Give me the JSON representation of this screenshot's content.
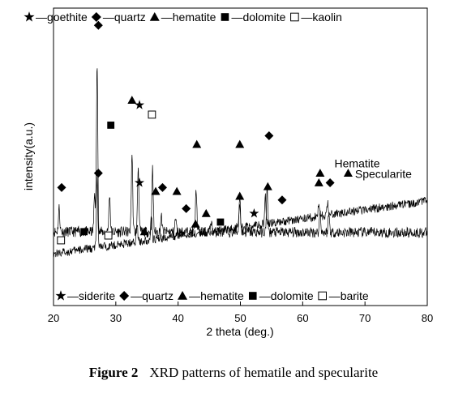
{
  "chart_data": {
    "type": "line",
    "xlabel": "2 theta (deg.)",
    "ylabel": "intensity(a.u.)",
    "xlim": [
      20,
      80
    ],
    "xticks": [
      20,
      30,
      40,
      50,
      60,
      70,
      80
    ],
    "y_ticks_shown": false,
    "grid": false,
    "top_legend": [
      {
        "symbol": "star",
        "text": "—goethite"
      },
      {
        "symbol": "diamond",
        "text": "—quartz"
      },
      {
        "symbol": "triangle",
        "text": "—hematite"
      },
      {
        "symbol": "square",
        "text": "—dolomite"
      },
      {
        "symbol": "open-square",
        "text": "—kaolin"
      }
    ],
    "bottom_legend": [
      {
        "symbol": "star",
        "text": "—siderite"
      },
      {
        "symbol": "diamond",
        "text": "—quartz"
      },
      {
        "symbol": "triangle",
        "text": "—hematite"
      },
      {
        "symbol": "square",
        "text": "—dolomite"
      },
      {
        "symbol": "open-square",
        "text": "—barite"
      }
    ],
    "series": [
      {
        "name": "Hematite",
        "baseline_start": 0.32,
        "baseline_end": 0.31,
        "noise": 0.055,
        "peaks": [
          [
            20.9,
            0.25
          ],
          [
            26.6,
            0.4
          ],
          [
            27.0,
            1.75
          ],
          [
            29.0,
            0.4
          ],
          [
            32.6,
            0.82
          ],
          [
            33.6,
            0.68
          ],
          [
            35.9,
            0.65
          ],
          [
            37.3,
            0.16
          ],
          [
            39.6,
            0.14
          ],
          [
            42.9,
            0.45
          ],
          [
            45.3,
            0.12
          ],
          [
            49.9,
            0.4
          ],
          [
            54.3,
            0.45
          ],
          [
            62.8,
            0.22
          ],
          [
            64.2,
            0.2
          ]
        ],
        "markers": [
          {
            "symbol": "diamond",
            "x": 21.3,
            "y": 0.78
          },
          {
            "symbol": "diamond",
            "x": 27.2,
            "y": 2.47
          },
          {
            "symbol": "square",
            "x": 29.2,
            "y": 1.43
          },
          {
            "symbol": "triangle",
            "x": 32.6,
            "y": 1.69
          },
          {
            "symbol": "star",
            "x": 33.8,
            "y": 1.64
          },
          {
            "symbol": "open-square",
            "x": 35.8,
            "y": 1.54
          },
          {
            "symbol": "diamond",
            "x": 37.5,
            "y": 0.78
          },
          {
            "symbol": "triangle",
            "x": 39.8,
            "y": 0.74
          },
          {
            "symbol": "triangle",
            "x": 43.0,
            "y": 1.23
          },
          {
            "symbol": "triangle",
            "x": 49.9,
            "y": 1.23
          },
          {
            "symbol": "diamond",
            "x": 54.6,
            "y": 1.32
          },
          {
            "symbol": "triangle",
            "x": 62.8,
            "y": 0.93
          },
          {
            "symbol": "triangle",
            "x": 67.3,
            "y": 0.93
          }
        ],
        "label": "Hematite",
        "label_x": 65.1,
        "label_y": 0.99
      },
      {
        "name": "Specularite",
        "baseline_start": 0.09,
        "baseline_end": 0.64,
        "noise": 0.045,
        "peaks": [
          [
            27.0,
            0.72
          ],
          [
            33.4,
            0.22
          ],
          [
            35.7,
            0.26
          ],
          [
            40.6,
            0.05
          ],
          [
            49.9,
            0.22
          ],
          [
            54.0,
            0.28
          ],
          [
            62.6,
            0.12
          ],
          [
            64.0,
            0.12
          ]
        ],
        "markers": [
          {
            "symbol": "open-square",
            "x": 21.2,
            "y": 0.23
          },
          {
            "symbol": "square",
            "x": 24.9,
            "y": 0.32
          },
          {
            "symbol": "diamond",
            "x": 27.2,
            "y": 0.93
          },
          {
            "symbol": "open-square",
            "x": 28.8,
            "y": 0.28
          },
          {
            "symbol": "star",
            "x": 33.8,
            "y": 0.83
          },
          {
            "symbol": "triangle",
            "x": 34.6,
            "y": 0.32
          },
          {
            "symbol": "triangle",
            "x": 36.4,
            "y": 0.74
          },
          {
            "symbol": "diamond",
            "x": 41.3,
            "y": 0.56
          },
          {
            "symbol": "triangle",
            "x": 42.8,
            "y": 0.4
          },
          {
            "symbol": "triangle",
            "x": 44.5,
            "y": 0.51
          },
          {
            "symbol": "square",
            "x": 46.8,
            "y": 0.42
          },
          {
            "symbol": "triangle",
            "x": 49.9,
            "y": 0.69
          },
          {
            "symbol": "star",
            "x": 52.2,
            "y": 0.51
          },
          {
            "symbol": "triangle",
            "x": 54.4,
            "y": 0.79
          },
          {
            "symbol": "diamond",
            "x": 56.7,
            "y": 0.65
          },
          {
            "symbol": "triangle",
            "x": 62.6,
            "y": 0.83
          },
          {
            "symbol": "diamond",
            "x": 64.4,
            "y": 0.83
          }
        ],
        "label": "Specularite",
        "label_x": 68.4,
        "label_y": 0.88
      }
    ]
  },
  "caption": {
    "number": "Figure 2",
    "text": "XRD patterns of hematile and specularite"
  }
}
